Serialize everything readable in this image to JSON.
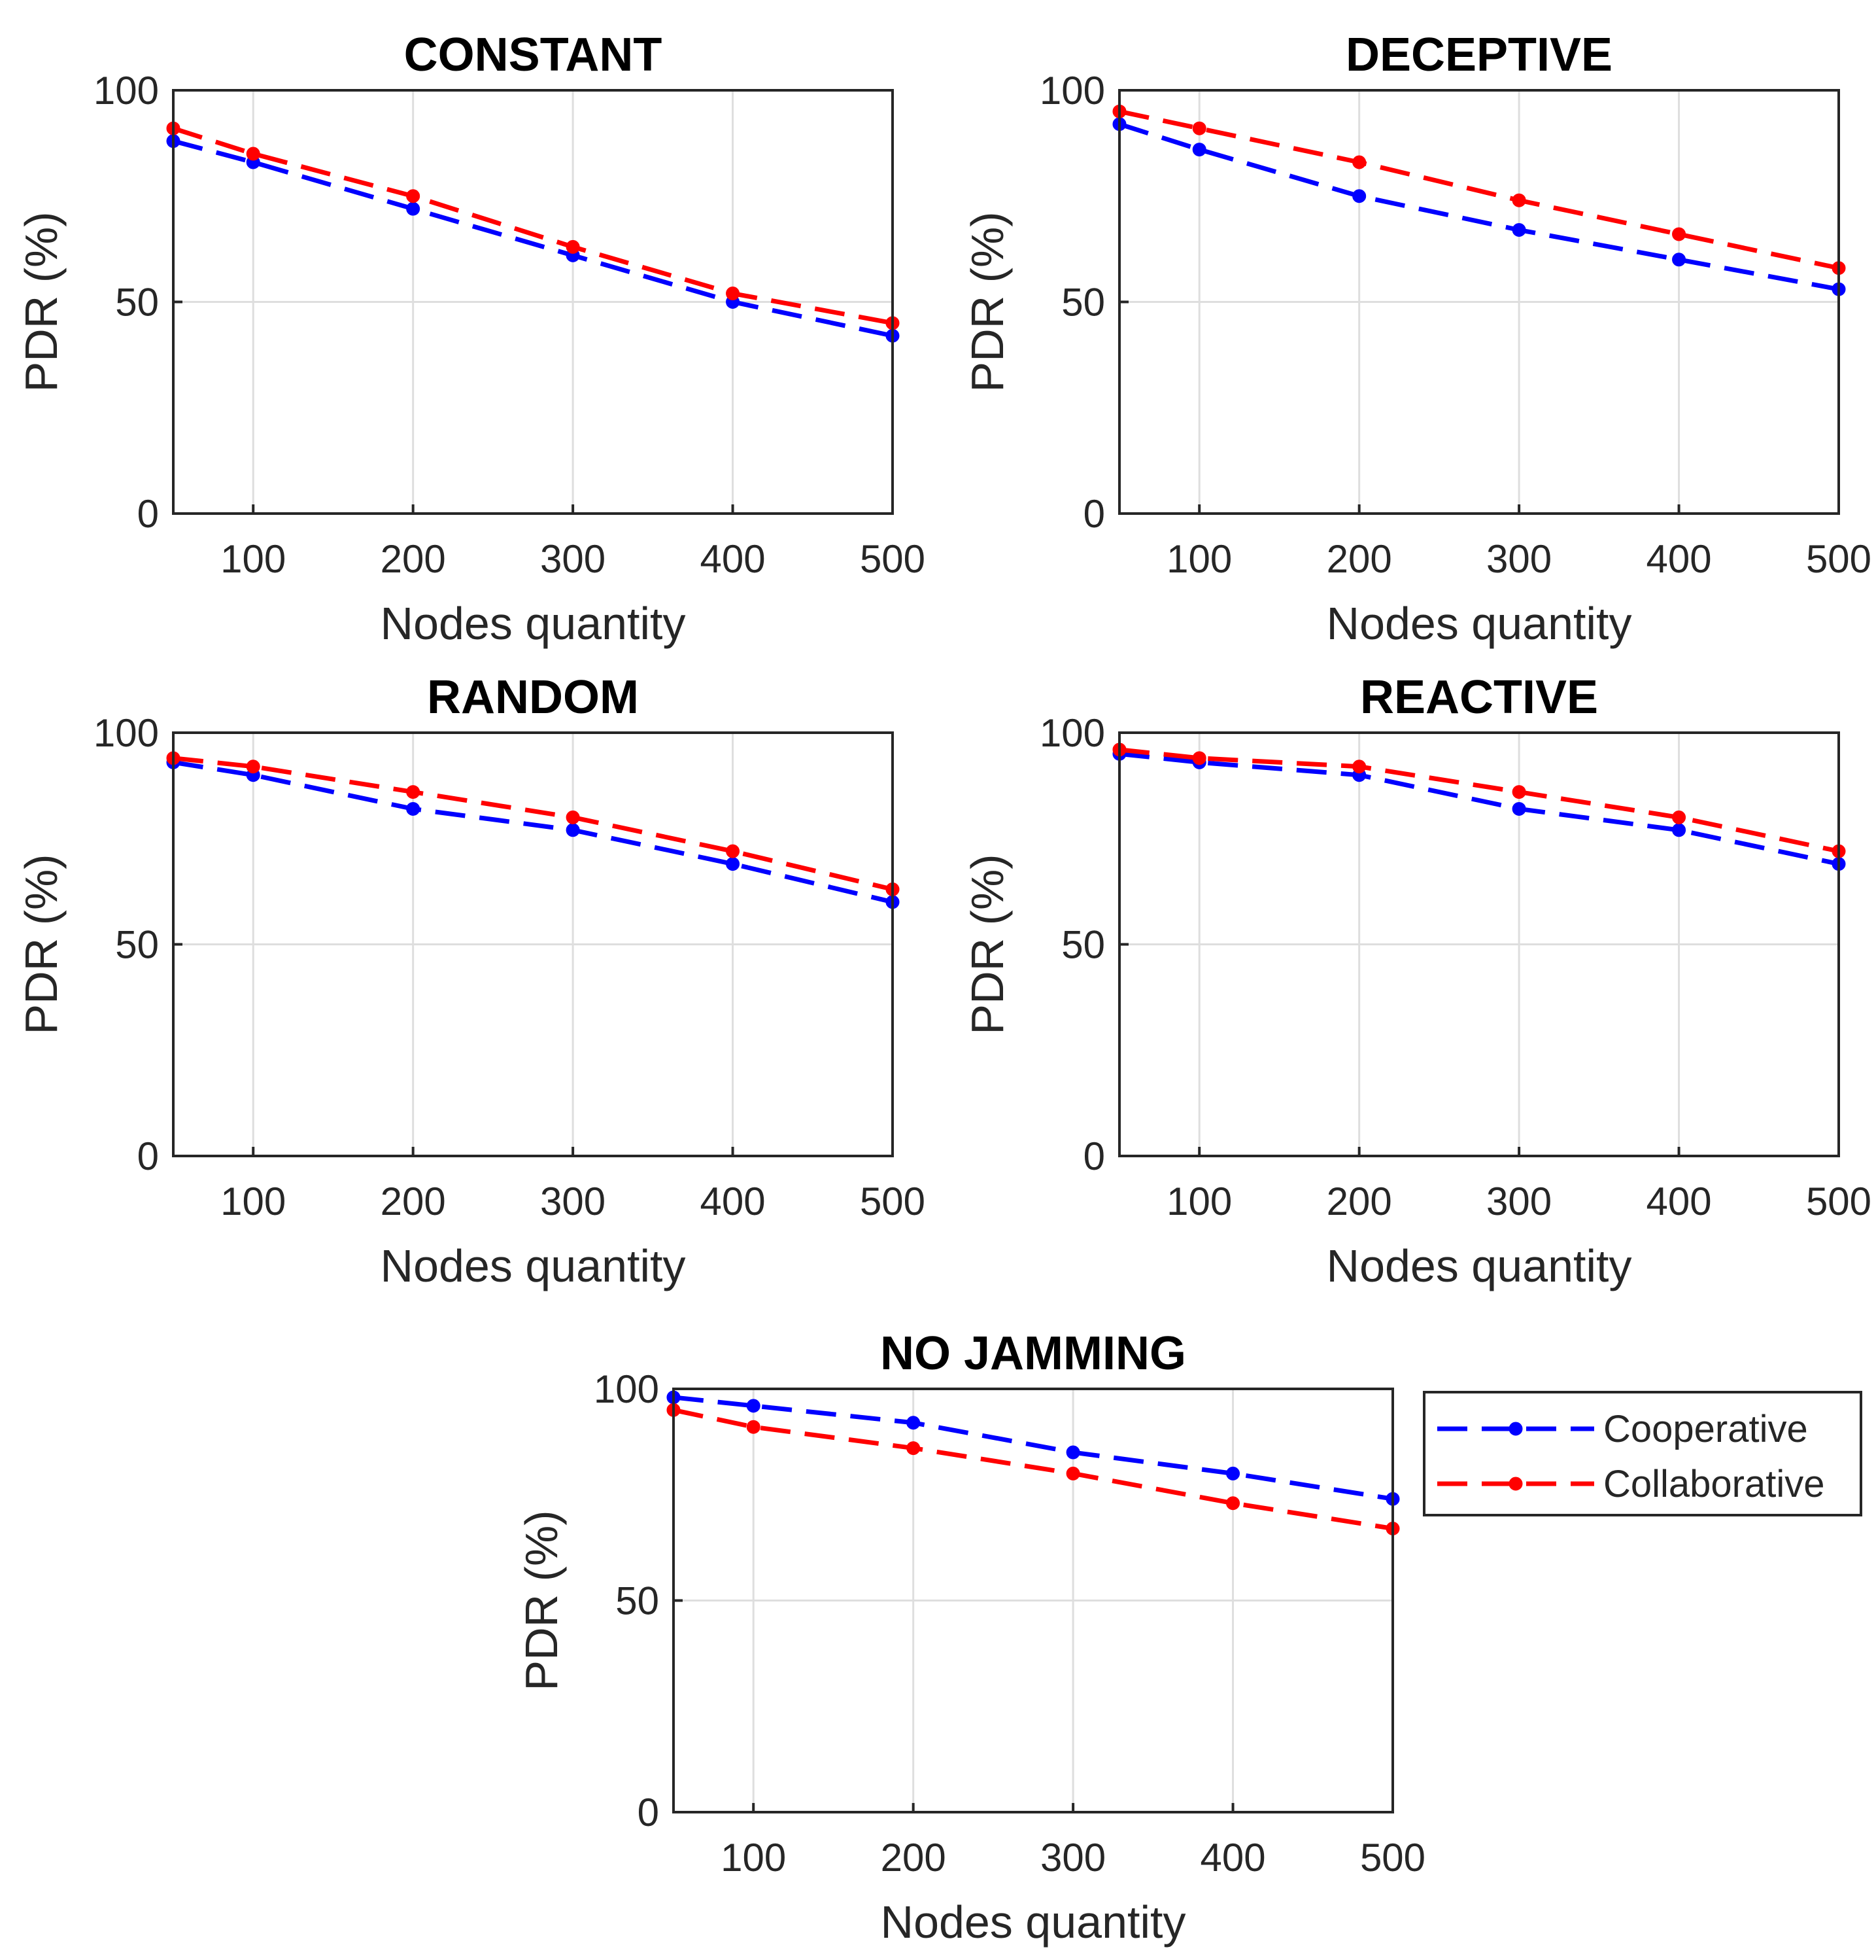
{
  "chart_data": [
    {
      "type": "line",
      "title": "CONSTANT",
      "xlabel": "Nodes quantity",
      "ylabel": "PDR (%)",
      "xlim": [
        50,
        500
      ],
      "ylim": [
        0,
        100
      ],
      "xticks": [
        100,
        200,
        300,
        400,
        500
      ],
      "yticks": [
        0,
        50,
        100
      ],
      "grid": true,
      "x": [
        50,
        100,
        200,
        300,
        400,
        500
      ],
      "series": [
        {
          "name": "Cooperative",
          "values": [
            88,
            83,
            72,
            61,
            50,
            42
          ]
        },
        {
          "name": "Collaborative",
          "values": [
            91,
            85,
            75,
            63,
            52,
            45
          ]
        }
      ]
    },
    {
      "type": "line",
      "title": "DECEPTIVE",
      "xlabel": "Nodes quantity",
      "ylabel": "PDR (%)",
      "xlim": [
        50,
        500
      ],
      "ylim": [
        0,
        100
      ],
      "xticks": [
        100,
        200,
        300,
        400,
        500
      ],
      "yticks": [
        0,
        50,
        100
      ],
      "grid": true,
      "x": [
        50,
        100,
        200,
        300,
        400,
        500
      ],
      "series": [
        {
          "name": "Cooperative",
          "values": [
            92,
            86,
            75,
            67,
            60,
            53
          ]
        },
        {
          "name": "Collaborative",
          "values": [
            95,
            91,
            83,
            74,
            66,
            58
          ]
        }
      ]
    },
    {
      "type": "line",
      "title": "RANDOM",
      "xlabel": "Nodes quantity",
      "ylabel": "PDR (%)",
      "xlim": [
        50,
        500
      ],
      "ylim": [
        0,
        100
      ],
      "xticks": [
        100,
        200,
        300,
        400,
        500
      ],
      "yticks": [
        0,
        50,
        100
      ],
      "grid": true,
      "x": [
        50,
        100,
        200,
        300,
        400,
        500
      ],
      "series": [
        {
          "name": "Cooperative",
          "values": [
            93,
            90,
            82,
            77,
            69,
            60
          ]
        },
        {
          "name": "Collaborative",
          "values": [
            94,
            92,
            86,
            80,
            72,
            63
          ]
        }
      ]
    },
    {
      "type": "line",
      "title": "REACTIVE",
      "xlabel": "Nodes quantity",
      "ylabel": "PDR (%)",
      "xlim": [
        50,
        500
      ],
      "ylim": [
        0,
        100
      ],
      "xticks": [
        100,
        200,
        300,
        400,
        500
      ],
      "yticks": [
        0,
        50,
        100
      ],
      "grid": true,
      "x": [
        50,
        100,
        200,
        300,
        400,
        500
      ],
      "series": [
        {
          "name": "Cooperative",
          "values": [
            95,
            93,
            90,
            82,
            77,
            69
          ]
        },
        {
          "name": "Collaborative",
          "values": [
            96,
            94,
            92,
            86,
            80,
            72
          ]
        }
      ]
    },
    {
      "type": "line",
      "title": "NO JAMMING",
      "xlabel": "Nodes quantity",
      "ylabel": "PDR (%)",
      "xlim": [
        50,
        500
      ],
      "ylim": [
        0,
        100
      ],
      "xticks": [
        100,
        200,
        300,
        400,
        500
      ],
      "yticks": [
        0,
        50,
        100
      ],
      "grid": true,
      "legend_position": "outside-right",
      "x": [
        50,
        100,
        200,
        300,
        400,
        500
      ],
      "series": [
        {
          "name": "Cooperative",
          "values": [
            98,
            96,
            92,
            85,
            80,
            74
          ]
        },
        {
          "name": "Collaborative",
          "values": [
            95,
            91,
            86,
            80,
            73,
            67
          ]
        }
      ]
    }
  ],
  "colors": {
    "Cooperative": "#0000ff",
    "Collaborative": "#ff0000"
  },
  "legend": {
    "items": [
      "Cooperative",
      "Collaborative"
    ]
  }
}
